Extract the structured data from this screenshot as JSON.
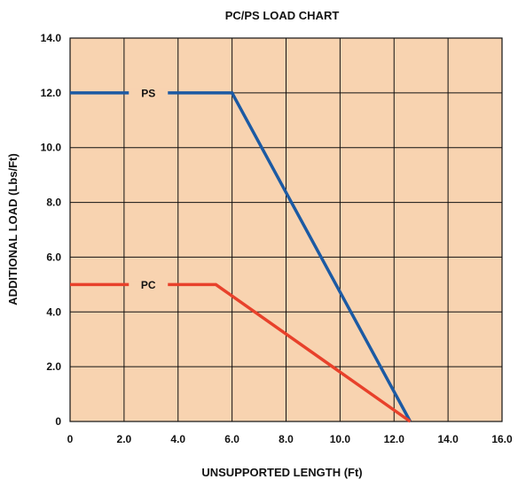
{
  "chart_data": {
    "type": "line",
    "title": "PC/PS LOAD CHART",
    "xlabel": "UNSUPPORTED LENGTH (Ft)",
    "ylabel": "ADDITIONAL LOAD (Lbs/Ft)",
    "xlim": [
      0,
      16
    ],
    "ylim": [
      0,
      14
    ],
    "x_ticks": [
      "0",
      "2.0",
      "4.0",
      "6.0",
      "8.0",
      "10.0",
      "12.0",
      "14.0",
      "16.0"
    ],
    "y_ticks": [
      "0",
      "2.0",
      "4.0",
      "6.0",
      "8.0",
      "10.0",
      "12.0",
      "14.0"
    ],
    "grid": true,
    "plot_background": "#f8d3b0",
    "series": [
      {
        "name": "PS",
        "color": "#1c5aa3",
        "points": [
          [
            0,
            12
          ],
          [
            6.0,
            12
          ],
          [
            12.6,
            0
          ]
        ],
        "label_at_x": 2.9
      },
      {
        "name": "PC",
        "color": "#e8412b",
        "points": [
          [
            0,
            5
          ],
          [
            5.4,
            5
          ],
          [
            12.6,
            0
          ]
        ],
        "label_at_x": 2.9
      }
    ]
  }
}
